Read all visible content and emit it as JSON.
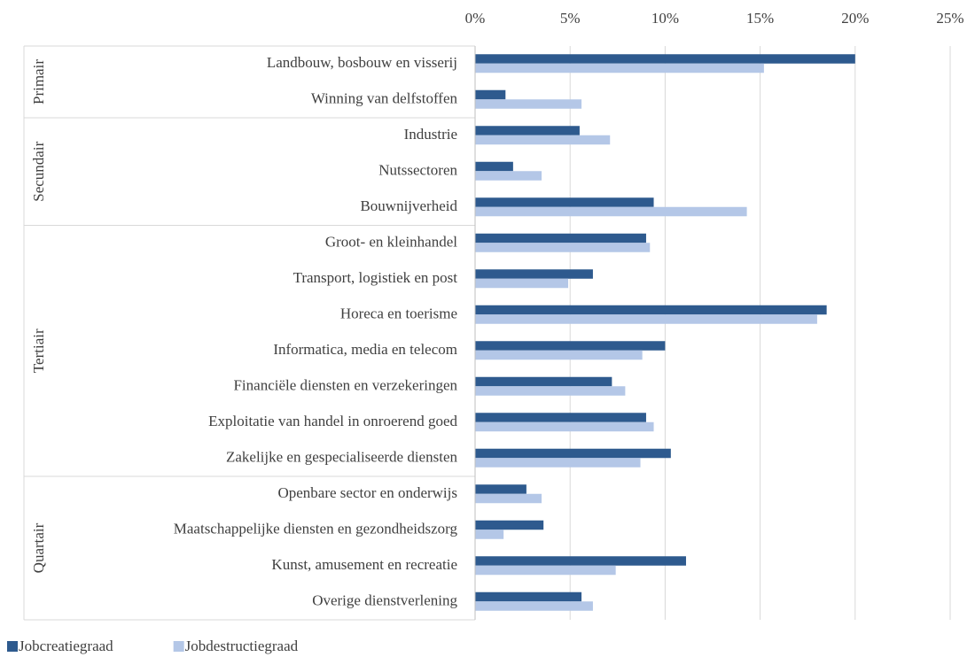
{
  "chart_data": {
    "type": "bar",
    "orientation": "horizontal",
    "groups": [
      {
        "name": "Primair",
        "categories": [
          "Landbouw, bosbouw en visserij",
          "Winning van delfstoffen"
        ]
      },
      {
        "name": "Secundair",
        "categories": [
          "Industrie",
          "Nutssectoren",
          "Bouwnijverheid"
        ]
      },
      {
        "name": "Tertiair",
        "categories": [
          "Groot- en kleinhandel",
          "Transport, logistiek en post",
          "Horeca en toerisme",
          "Informatica, media en telecom",
          "Financiële diensten en verzekeringen",
          "Exploitatie van handel in onroerend goed",
          "Zakelijke en gespecialiseerde diensten"
        ]
      },
      {
        "name": "Quartair",
        "categories": [
          "Openbare sector en onderwijs",
          "Maatschappelijke diensten en gezondheidszorg",
          "Kunst, amusement en recreatie",
          "Overige dienstverlening"
        ]
      }
    ],
    "series": [
      {
        "name": "Jobcreatiegraad",
        "color": "#2e5a8e",
        "values": [
          20.0,
          1.6,
          5.5,
          2.0,
          9.4,
          9.0,
          6.2,
          18.5,
          10.0,
          7.2,
          9.0,
          10.3,
          2.7,
          3.6,
          11.1,
          5.6
        ]
      },
      {
        "name": "Jobdestructiegraad",
        "color": "#b4c7e7",
        "values": [
          15.2,
          5.6,
          7.1,
          3.5,
          14.3,
          9.2,
          4.9,
          18.0,
          8.8,
          7.9,
          9.4,
          8.7,
          3.5,
          1.5,
          7.4,
          6.2
        ]
      }
    ],
    "xlim": [
      0,
      25
    ],
    "xticks": [
      {
        "value": 0,
        "label": "0%"
      },
      {
        "value": 5,
        "label": "5%"
      },
      {
        "value": 10,
        "label": "10%"
      },
      {
        "value": 15,
        "label": "15%"
      },
      {
        "value": 20,
        "label": "20%"
      },
      {
        "value": 25,
        "label": "25%"
      }
    ],
    "grid": true,
    "legend": "bottom-left"
  }
}
